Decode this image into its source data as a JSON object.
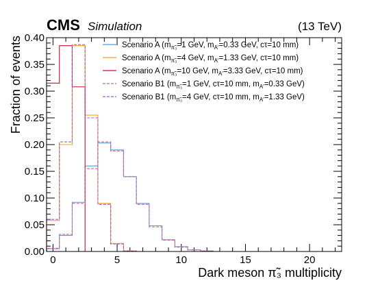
{
  "header": {
    "experiment": "CMS",
    "subtitle": "Simulation",
    "energy": "(13 TeV)"
  },
  "chart_data": {
    "type": "line",
    "drawstyle": "step-histogram",
    "xlabel": "Dark meson π̃₃ multiplicity",
    "ylabel": "Fraction of events",
    "xlim": [
      -0.5,
      22.5
    ],
    "ylim": [
      0,
      0.4
    ],
    "x_ticks": [
      0,
      5,
      10,
      15,
      20
    ],
    "y_ticks": [
      0.0,
      0.05,
      0.1,
      0.15,
      0.2,
      0.25,
      0.3,
      0.35,
      0.4
    ],
    "y_tick_labels": [
      "0.00",
      "0.05",
      "0.10",
      "0.15",
      "0.20",
      "0.25",
      "0.30",
      "0.35",
      "0.40"
    ],
    "bin_edges": [
      -0.5,
      0.5,
      1.5,
      2.5,
      3.5,
      4.5,
      5.5,
      6.5,
      7.5,
      8.5,
      9.5,
      10.5,
      11.5,
      12.5,
      13.5,
      14.5,
      15.5,
      16.5,
      17.5,
      18.5,
      19.5,
      20.5,
      21.5,
      22.5
    ],
    "legend_position": "top-right",
    "series": [
      {
        "name": "Scenario A (m_{π̃₃}=1 GeV, m_{A'}=0.33 GeV, cτ=10 mm)",
        "label_main": "Scenario A (m",
        "label_sub": "π̃₃",
        "label_rest": "=1 GeV, m",
        "label_sub2": "A'",
        "label_end": "=0.33 GeV, cτ=10 mm)",
        "color": "#5b9bd5",
        "dash": "solid",
        "values": [
          0.005,
          0.03,
          0.092,
          0.16,
          0.203,
          0.19,
          0.14,
          0.09,
          0.048,
          0.022,
          0.009,
          0.003,
          0.001,
          0,
          0,
          0,
          0,
          0,
          0,
          0,
          0,
          0,
          0
        ]
      },
      {
        "name": "Scenario A (m_{π̃₃}=4 GeV, m_{A'}=1.33 GeV, cτ=10 mm)",
        "label_main": "Scenario A (m",
        "label_sub": "π̃₃",
        "label_rest": "=4 GeV, m",
        "label_sub2": "A'",
        "label_end": "=1.33 GeV, cτ=10 mm)",
        "color": "#f0a020",
        "dash": "solid",
        "values": [
          0.058,
          0.2,
          0.385,
          0.255,
          0.09,
          0.015,
          0.001,
          0,
          0,
          0,
          0,
          0,
          0,
          0,
          0,
          0,
          0,
          0,
          0,
          0,
          0,
          0,
          0
        ]
      },
      {
        "name": "Scenario A (m_{π̃₃}=10 GeV, m_{A'}=3.33 GeV, cτ=10 mm)",
        "label_main": "Scenario A (m",
        "label_sub": "π̃₃",
        "label_rest": "=10 GeV, m",
        "label_sub2": "A'",
        "label_end": "=3.33 GeV, cτ=10 mm)",
        "color": "#c8102e",
        "dash": "solid",
        "values": [
          0.315,
          0.385,
          0.308,
          0,
          0,
          0,
          0,
          0,
          0,
          0,
          0,
          0,
          0,
          0,
          0,
          0,
          0,
          0,
          0,
          0,
          0,
          0,
          0
        ]
      },
      {
        "name": "Scenario B1 (m_{π̃₃}=1 GeV, cτ=10 mm, m_{A'}=0.33 GeV)",
        "label_main": "Scenario B1 (m",
        "label_sub": "π̃₃",
        "label_rest": "=1 GeV, cτ=10 mm, m",
        "label_sub2": "A'",
        "label_end": "=0.33 GeV)",
        "color": "#d06090",
        "dash": "dashed",
        "values": [
          0.006,
          0.032,
          0.09,
          0.155,
          0.205,
          0.188,
          0.14,
          0.088,
          0.046,
          0.021,
          0.008,
          0.003,
          0.001,
          0,
          0,
          0,
          0,
          0,
          0,
          0,
          0,
          0,
          0
        ]
      },
      {
        "name": "Scenario B1 (m_{π̃₃}=4 GeV, cτ=10 mm, m_{A'}=1.33 GeV)",
        "label_main": "Scenario B1 (m",
        "label_sub": "π̃₃",
        "label_rest": "=4 GeV, cτ=10 mm, m",
        "label_sub2": "A'",
        "label_end": "=1.33 GeV)",
        "color": "#9b59d0",
        "dash": "dashed",
        "values": [
          0.06,
          0.205,
          0.387,
          0.25,
          0.088,
          0.014,
          0.001,
          0,
          0,
          0,
          0,
          0,
          0,
          0,
          0,
          0,
          0,
          0,
          0,
          0,
          0,
          0,
          0
        ]
      }
    ]
  }
}
